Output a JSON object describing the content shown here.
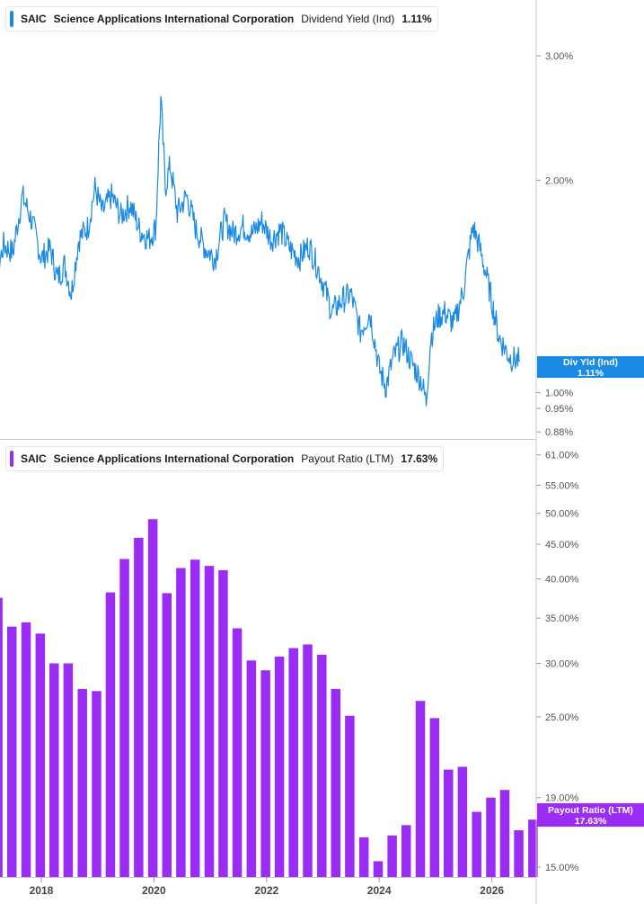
{
  "panels": [
    {
      "ticker": "SAIC",
      "company": "Science Applications International Corporation",
      "metric": "Dividend Yield (Ind)",
      "current_value": "1.11%",
      "tag_label": "Div Yld (Ind)",
      "tag_value": "1.11%",
      "color": "#1a8ae5"
    },
    {
      "ticker": "SAIC",
      "company": "Science Applications International Corporation",
      "metric": "Payout Ratio (LTM)",
      "current_value": "17.63%",
      "tag_label": "Payout Ratio (LTM)",
      "tag_value": "17.63%",
      "color": "#9a2cf5"
    }
  ],
  "chart_data": [
    {
      "type": "line",
      "y_scale": "log",
      "ylim": [
        0.86,
        3.6
      ],
      "y_ticks": [
        "3.00%",
        "2.00%",
        "1.00%",
        "0.95%",
        "0.88%"
      ],
      "y_tick_values": [
        3.0,
        2.0,
        1.0,
        0.95,
        0.88
      ],
      "xlim": [
        "2016-12-01",
        "2026-12-01"
      ],
      "x_ticks": [
        "2018",
        "2020",
        "2022",
        "2024",
        "2026"
      ],
      "series": [
        {
          "color": "#1a8ae5",
          "points": [
            [
              "2016-12-01",
              1.75
            ],
            [
              "2017-01-15",
              1.45
            ],
            [
              "2017-03-01",
              1.4
            ],
            [
              "2017-05-01",
              1.62
            ],
            [
              "2017-07-01",
              1.58
            ],
            [
              "2017-09-01",
              1.9
            ],
            [
              "2017-11-01",
              1.75
            ],
            [
              "2018-01-01",
              1.55
            ],
            [
              "2018-03-01",
              1.6
            ],
            [
              "2018-04-15",
              1.45
            ],
            [
              "2018-06-01",
              1.52
            ],
            [
              "2018-07-15",
              1.38
            ],
            [
              "2018-09-01",
              1.65
            ],
            [
              "2018-11-01",
              1.72
            ],
            [
              "2018-12-15",
              1.95
            ],
            [
              "2019-02-01",
              1.8
            ],
            [
              "2019-04-01",
              1.9
            ],
            [
              "2019-06-01",
              1.78
            ],
            [
              "2019-08-01",
              1.85
            ],
            [
              "2019-10-01",
              1.7
            ],
            [
              "2019-12-01",
              1.65
            ],
            [
              "2020-01-15",
              1.72
            ],
            [
              "2020-02-15",
              2.6
            ],
            [
              "2020-03-15",
              1.95
            ],
            [
              "2020-04-15",
              2.1
            ],
            [
              "2020-06-01",
              1.8
            ],
            [
              "2020-08-01",
              1.9
            ],
            [
              "2020-10-01",
              1.7
            ],
            [
              "2020-12-01",
              1.6
            ],
            [
              "2021-02-01",
              1.55
            ],
            [
              "2021-04-01",
              1.75
            ],
            [
              "2021-06-01",
              1.68
            ],
            [
              "2021-08-01",
              1.72
            ],
            [
              "2021-10-01",
              1.68
            ],
            [
              "2021-12-01",
              1.75
            ],
            [
              "2022-02-01",
              1.65
            ],
            [
              "2022-04-01",
              1.7
            ],
            [
              "2022-06-01",
              1.6
            ],
            [
              "2022-08-01",
              1.55
            ],
            [
              "2022-10-01",
              1.62
            ],
            [
              "2022-12-01",
              1.5
            ],
            [
              "2023-03-01",
              1.3
            ],
            [
              "2023-05-01",
              1.35
            ],
            [
              "2023-07-01",
              1.38
            ],
            [
              "2023-09-01",
              1.22
            ],
            [
              "2023-11-01",
              1.3
            ],
            [
              "2024-01-01",
              1.08
            ],
            [
              "2024-02-15",
              1.02
            ],
            [
              "2024-04-01",
              1.12
            ],
            [
              "2024-06-01",
              1.18
            ],
            [
              "2024-08-01",
              1.1
            ],
            [
              "2024-10-01",
              1.04
            ],
            [
              "2024-11-01",
              0.97
            ],
            [
              "2024-12-01",
              1.2
            ],
            [
              "2025-01-15",
              1.28
            ],
            [
              "2025-03-01",
              1.3
            ],
            [
              "2025-05-01",
              1.25
            ],
            [
              "2025-07-01",
              1.4
            ],
            [
              "2025-09-01",
              1.72
            ],
            [
              "2025-10-15",
              1.6
            ],
            [
              "2025-12-01",
              1.45
            ],
            [
              "2026-01-15",
              1.3
            ],
            [
              "2026-02-15",
              1.2
            ],
            [
              "2026-04-01",
              1.15
            ],
            [
              "2026-05-01",
              1.12
            ],
            [
              "2026-07-01",
              1.11
            ]
          ]
        }
      ]
    },
    {
      "type": "bar",
      "y_scale": "log",
      "ylim": [
        14.5,
        64
      ],
      "y_ticks": [
        "61.00%",
        "55.00%",
        "50.00%",
        "45.00%",
        "40.00%",
        "35.00%",
        "30.00%",
        "25.00%",
        "19.00%",
        "15.00%"
      ],
      "y_tick_values": [
        61,
        55,
        50,
        45,
        40,
        35,
        30,
        25,
        19,
        15
      ],
      "xlim": [
        "2016-12-01",
        "2026-12-01"
      ],
      "x_ticks": [
        "2018",
        "2020",
        "2022",
        "2024",
        "2026"
      ],
      "series": [
        {
          "color": "#9a2cf5",
          "points": [
            [
              "2016-12-31",
              39.0
            ],
            [
              "2017-03-31",
              37.5
            ],
            [
              "2017-06-30",
              34.0
            ],
            [
              "2017-09-30",
              34.5
            ],
            [
              "2017-12-31",
              33.2
            ],
            [
              "2018-03-31",
              30.0
            ],
            [
              "2018-06-30",
              30.0
            ],
            [
              "2018-09-30",
              27.5
            ],
            [
              "2018-12-31",
              27.3
            ],
            [
              "2019-03-31",
              38.2
            ],
            [
              "2019-06-30",
              42.8
            ],
            [
              "2019-09-30",
              46.0
            ],
            [
              "2019-12-31",
              49.0
            ],
            [
              "2020-03-31",
              38.1
            ],
            [
              "2020-06-30",
              41.5
            ],
            [
              "2020-09-30",
              42.7
            ],
            [
              "2020-12-31",
              41.8
            ],
            [
              "2021-03-31",
              41.2
            ],
            [
              "2021-06-30",
              33.8
            ],
            [
              "2021-09-30",
              30.3
            ],
            [
              "2021-12-31",
              29.3
            ],
            [
              "2022-03-31",
              30.7
            ],
            [
              "2022-06-30",
              31.6
            ],
            [
              "2022-09-30",
              32.0
            ],
            [
              "2022-12-31",
              30.9
            ],
            [
              "2023-03-31",
              27.5
            ],
            [
              "2023-06-30",
              25.1
            ],
            [
              "2023-09-30",
              16.6
            ],
            [
              "2023-12-31",
              15.3
            ],
            [
              "2024-03-31",
              16.7
            ],
            [
              "2024-06-30",
              17.3
            ],
            [
              "2024-09-30",
              26.4
            ],
            [
              "2024-12-31",
              24.9
            ],
            [
              "2025-03-31",
              20.9
            ],
            [
              "2025-06-30",
              21.1
            ],
            [
              "2025-09-30",
              18.1
            ],
            [
              "2025-12-31",
              19.0
            ],
            [
              "2026-03-31",
              19.5
            ],
            [
              "2026-06-30",
              17.0
            ],
            [
              "2026-09-30",
              17.63
            ]
          ]
        }
      ]
    }
  ]
}
